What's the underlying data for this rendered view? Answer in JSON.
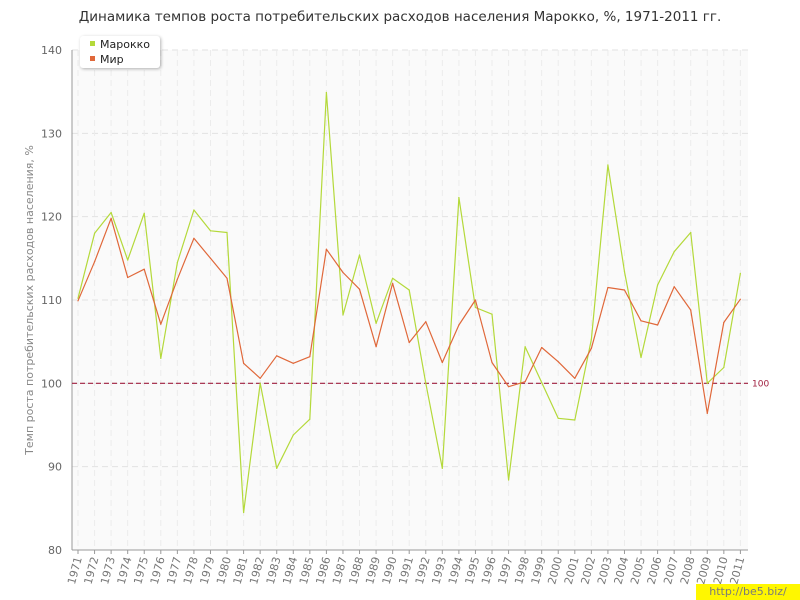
{
  "chart_data": {
    "type": "line",
    "title": "Динамика темпов роста потребительских расходов населения Марокко, %, 1971-2011 гг.",
    "xlabel": "",
    "ylabel": "Темп роста потребительских расходов населения, %",
    "ylim": [
      80,
      140
    ],
    "yticks": [
      80,
      90,
      100,
      110,
      120,
      130,
      140
    ],
    "grid": true,
    "legend_position": "top-left",
    "categories": [
      "1971",
      "1972",
      "1973",
      "1974",
      "1975",
      "1976",
      "1977",
      "1978",
      "1979",
      "1980",
      "1981",
      "1982",
      "1983",
      "1984",
      "1985",
      "1986",
      "1987",
      "1988",
      "1989",
      "1990",
      "1991",
      "1992",
      "1993",
      "1994",
      "1995",
      "1996",
      "1997",
      "1998",
      "1999",
      "2000",
      "2001",
      "2002",
      "2003",
      "2004",
      "2005",
      "2006",
      "2007",
      "2008",
      "2009",
      "2010",
      "2011"
    ],
    "series": [
      {
        "name": "Марокко",
        "color": "#b4d93a",
        "values": [
          110.2,
          118.0,
          120.5,
          114.8,
          120.4,
          103.0,
          114.5,
          120.8,
          118.3,
          118.1,
          84.5,
          100.0,
          89.8,
          93.8,
          95.7,
          134.9,
          108.2,
          115.4,
          107.2,
          112.6,
          111.2,
          100.0,
          89.8,
          122.3,
          109.1,
          108.3,
          88.4,
          104.4,
          100.1,
          95.8,
          95.6,
          105.3,
          126.2,
          113.4,
          103.1,
          111.8,
          115.8,
          118.1,
          100.0,
          101.9,
          113.2
        ]
      },
      {
        "name": "Мир",
        "color": "#e0683a",
        "values": [
          109.9,
          114.6,
          119.8,
          112.7,
          113.7,
          107.1,
          112.5,
          117.4,
          115.0,
          112.6,
          102.4,
          100.6,
          103.3,
          102.4,
          103.2,
          116.1,
          113.3,
          111.3,
          104.4,
          112.0,
          104.9,
          107.4,
          102.5,
          107.0,
          110.0,
          102.5,
          99.6,
          100.2,
          104.3,
          102.6,
          100.6,
          104.2,
          111.5,
          111.2,
          107.5,
          107.0,
          111.6,
          108.8,
          96.4,
          107.3,
          110.1
        ]
      }
    ],
    "reference_line": {
      "value": 100,
      "label": "100",
      "color": "#a02040"
    }
  },
  "watermark": "http://be5.biz/"
}
